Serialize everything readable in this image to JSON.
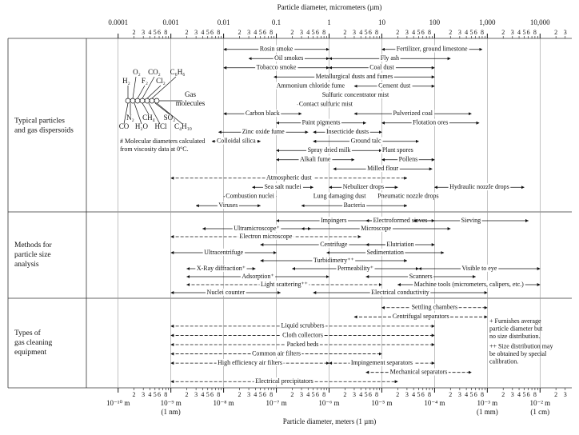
{
  "chart_data": {
    "type": "range",
    "title": "Particle diameter, micrometers (µm)",
    "x2_title": "Particle diameter, meters (1 µm)",
    "log_x": true,
    "grid": true,
    "xlim": [
      2.5e-05,
      40000
    ],
    "xticks": [
      0.0001,
      0.001,
      0.01,
      0.1,
      1,
      10,
      100,
      {
        "value": 1000,
        "label": "1,000"
      },
      {
        "value": 10000,
        "label": "10,000"
      }
    ],
    "minor_tick_labels": [
      2,
      3,
      4,
      5,
      6,
      8
    ],
    "x2ticks": [
      {
        "value": 0.0001,
        "label": "10⁻¹⁰ m"
      },
      {
        "value": 0.001,
        "label": "10⁻⁹ m"
      },
      {
        "value": 0.01,
        "label": "10⁻⁸ m"
      },
      {
        "value": 0.1,
        "label": "10⁻⁷ m"
      },
      {
        "value": 1,
        "label": "10⁻⁶ m"
      },
      {
        "value": 10,
        "label": "10⁻⁵ m"
      },
      {
        "value": 100,
        "label": "10⁻⁴ m"
      },
      {
        "value": 1000,
        "label": "10⁻³ m"
      },
      {
        "value": 10000,
        "label": "10⁻² m"
      }
    ],
    "x2_notes": [
      {
        "value": 0.001,
        "label": "(1 nm)"
      },
      {
        "value": 1000,
        "label": "(1 mm)"
      },
      {
        "value": 10000,
        "label": "(1 cm)"
      }
    ],
    "molecules": [
      "O₂",
      "CO₂",
      "C₆H₆",
      "H₂",
      "F₂",
      "Cl₂",
      "Gas",
      "molecules",
      "N₂",
      "CH₄",
      "SO₂",
      "CO",
      "H₂O",
      "HCl",
      "C₄H₁₀",
      "# Molecular diameters calculated",
      "from viscosity data at 0°C."
    ],
    "footnotes": [
      "+ Furnishes average",
      "particle diameter but",
      "no size distribution.",
      "++ Size distribution may",
      "be obtained by special",
      "calibration."
    ],
    "sections": [
      {
        "label": [
          "Typical particles",
          "and gas dispersoids"
        ],
        "rows": [
          [
            {
              "label": "Rosin smoke",
              "low": 0.01,
              "high": 1
            },
            {
              "label": "Fertilizer, ground limestone",
              "low": 10,
              "high": 800
            }
          ],
          [
            {
              "label": "Oil smokes",
              "low": 0.03,
              "high": 1
            },
            {
              "label": "Fly ash",
              "low": 1,
              "high": 200
            }
          ],
          [
            {
              "label": "Tobacco smoke",
              "low": 0.01,
              "high": 1
            },
            {
              "label": "Coal dust",
              "low": 1,
              "high": 100
            }
          ],
          [
            {
              "label": "Metallurgical dusts and fumes",
              "low": 0.09,
              "high": 100
            }
          ],
          [
            {
              "label": "Ammonium chloride fume",
              "low": 0.1,
              "high": 2
            },
            {
              "label": "Cement dust",
              "low": 3,
              "high": 100
            }
          ],
          [
            {
              "label": "Sulfuric concentrator mist",
              "low": 1,
              "high": 10
            }
          ],
          [
            {
              "label": "Contact sulfuric mist",
              "low": 0.25,
              "high": 3
            }
          ],
          [
            {
              "label": "Carbon black",
              "low": 0.01,
              "high": 0.3
            },
            {
              "label": "Pulverized coal",
              "low": 3,
              "high": 500
            }
          ],
          [
            {
              "label": "Paint pigments",
              "low": 0.1,
              "high": 5
            },
            {
              "label": "Flotation ores",
              "low": 10,
              "high": 700
            }
          ],
          [
            {
              "label": "Zinc oxide fume",
              "low": 0.008,
              "high": 0.4
            },
            {
              "label": "Insecticide dusts",
              "low": 0.5,
              "high": 10
            }
          ],
          [
            {
              "label": "Colloidal silica",
              "low": 0.006,
              "high": 0.05
            },
            {
              "label": "Ground talc",
              "low": 0.5,
              "high": 50
            }
          ],
          [
            {
              "label": "Spray dried milk",
              "low": 0.1,
              "high": 10
            },
            {
              "label": "Plant spores",
              "low": 10,
              "high": 40
            }
          ],
          [
            {
              "label": "Alkali fume",
              "low": 0.1,
              "high": 3
            },
            {
              "label": "Pollens",
              "low": 10,
              "high": 100
            }
          ],
          [
            {
              "label": "Milled flour",
              "low": 1.2,
              "high": 90
            }
          ],
          [
            {
              "label": "Atmospheric dust",
              "low": 0.001,
              "high": 30,
              "dashed": true
            }
          ],
          [
            {
              "label": "Sea salt nuclei",
              "low": 0.035,
              "high": 0.5
            },
            {
              "label": "Nebulizer drops",
              "low": 1,
              "high": 20
            },
            {
              "label": "Hydraulic nozzle drops",
              "low": 100,
              "high": 5000
            }
          ],
          [
            {
              "label": "Combustion nuclei",
              "low": 0.01,
              "high": 0.1
            },
            {
              "label": "Lung damaging dust",
              "low": 0.5,
              "high": 5
            },
            {
              "label": "Pneumatic nozzle drops",
              "low": 10,
              "high": 100
            }
          ],
          [
            {
              "label": "Viruses",
              "low": 0.003,
              "high": 0.05
            },
            {
              "label": "Bacteria",
              "low": 0.3,
              "high": 30
            }
          ]
        ]
      },
      {
        "label": [
          "Methods for",
          "particle size",
          "analysis"
        ],
        "rows": [
          [
            {
              "label": "Impingers",
              "low": 0.1,
              "high": 15
            },
            {
              "label": "Electroformed sieves",
              "low": 5,
              "high": 100
            },
            {
              "label": "Sieving",
              "low": 40,
              "high": 6000
            }
          ],
          [
            {
              "label": "Ultramicroscope⁺",
              "low": 0.004,
              "high": 0.45
            },
            {
              "label": "Microscope",
              "low": 0.3,
              "high": 200
            }
          ],
          [
            {
              "label": "Electron microscope",
              "low": 0.001,
              "high": 4,
              "dashed": true
            }
          ],
          [
            {
              "label": "Centrifuge",
              "low": 0.05,
              "high": 30
            },
            {
              "label": "Elutriation",
              "low": 5,
              "high": 100
            }
          ],
          [
            {
              "label": "Ultracentrifuge",
              "low": 0.001,
              "high": 0.1
            },
            {
              "label": "Sedimentation",
              "low": 0.9,
              "high": 150
            }
          ],
          [
            {
              "label": "Turbidimetry⁺⁺",
              "low": 0.05,
              "high": 30
            }
          ],
          [
            {
              "label": "X-Ray diffraction⁺",
              "low": 0.002,
              "high": 0.04
            },
            {
              "label": "Permeability⁺",
              "low": 0.2,
              "high": 50
            },
            {
              "label": "Visible to eye",
              "low": 50,
              "high": 10000
            }
          ],
          [
            {
              "label": "Adsorption⁺",
              "low": 0.002,
              "high": 1
            },
            {
              "label": "Scanners",
              "low": 5,
              "high": 600
            }
          ],
          [
            {
              "label": "Light scattering⁺⁺",
              "low": 0.002,
              "high": 10,
              "dashed": true
            },
            {
              "label": "Machine tools (micrometers, calipers, etc.)",
              "low": 20,
              "high": 10000
            }
          ],
          [
            {
              "label": "Nuclei counter",
              "low": 0.001,
              "high": 0.12
            },
            {
              "label": "Electrical conductivity",
              "low": 0.5,
              "high": 1000
            }
          ]
        ]
      },
      {
        "label": [
          "Types of",
          "gas cleaning",
          "equipment"
        ],
        "rows": [
          [
            {
              "label": "Settling chambers",
              "low": 10,
              "high": 1000,
              "dashed": true
            }
          ],
          [
            {
              "label": "Centrifugal separators",
              "low": 3,
              "high": 1000,
              "dashed": true
            }
          ],
          [
            {
              "label": "Liquid scrubbers",
              "low": 0.001,
              "high": 100,
              "dashed": true
            }
          ],
          [
            {
              "label": "Cloth collectors",
              "low": 0.001,
              "high": 100,
              "dashed": true
            }
          ],
          [
            {
              "label": "Packed beds",
              "low": 0.001,
              "high": 100,
              "dashed": true
            }
          ],
          [
            {
              "label": "Common air filters",
              "low": 0.001,
              "high": 10,
              "dashed": true
            }
          ],
          [
            {
              "label": "High efficiency air filters",
              "low": 0.001,
              "high": 1,
              "dashed": true
            },
            {
              "label": "Impingement separators",
              "low": 1,
              "high": 100,
              "dashed": true
            }
          ],
          [
            {
              "label": "Mechanical separators",
              "low": 5,
              "high": 500,
              "dashed": true
            }
          ],
          [
            {
              "label": "Electrical precipitators",
              "low": 0.001,
              "high": 20,
              "dashed": true
            }
          ]
        ]
      }
    ]
  }
}
